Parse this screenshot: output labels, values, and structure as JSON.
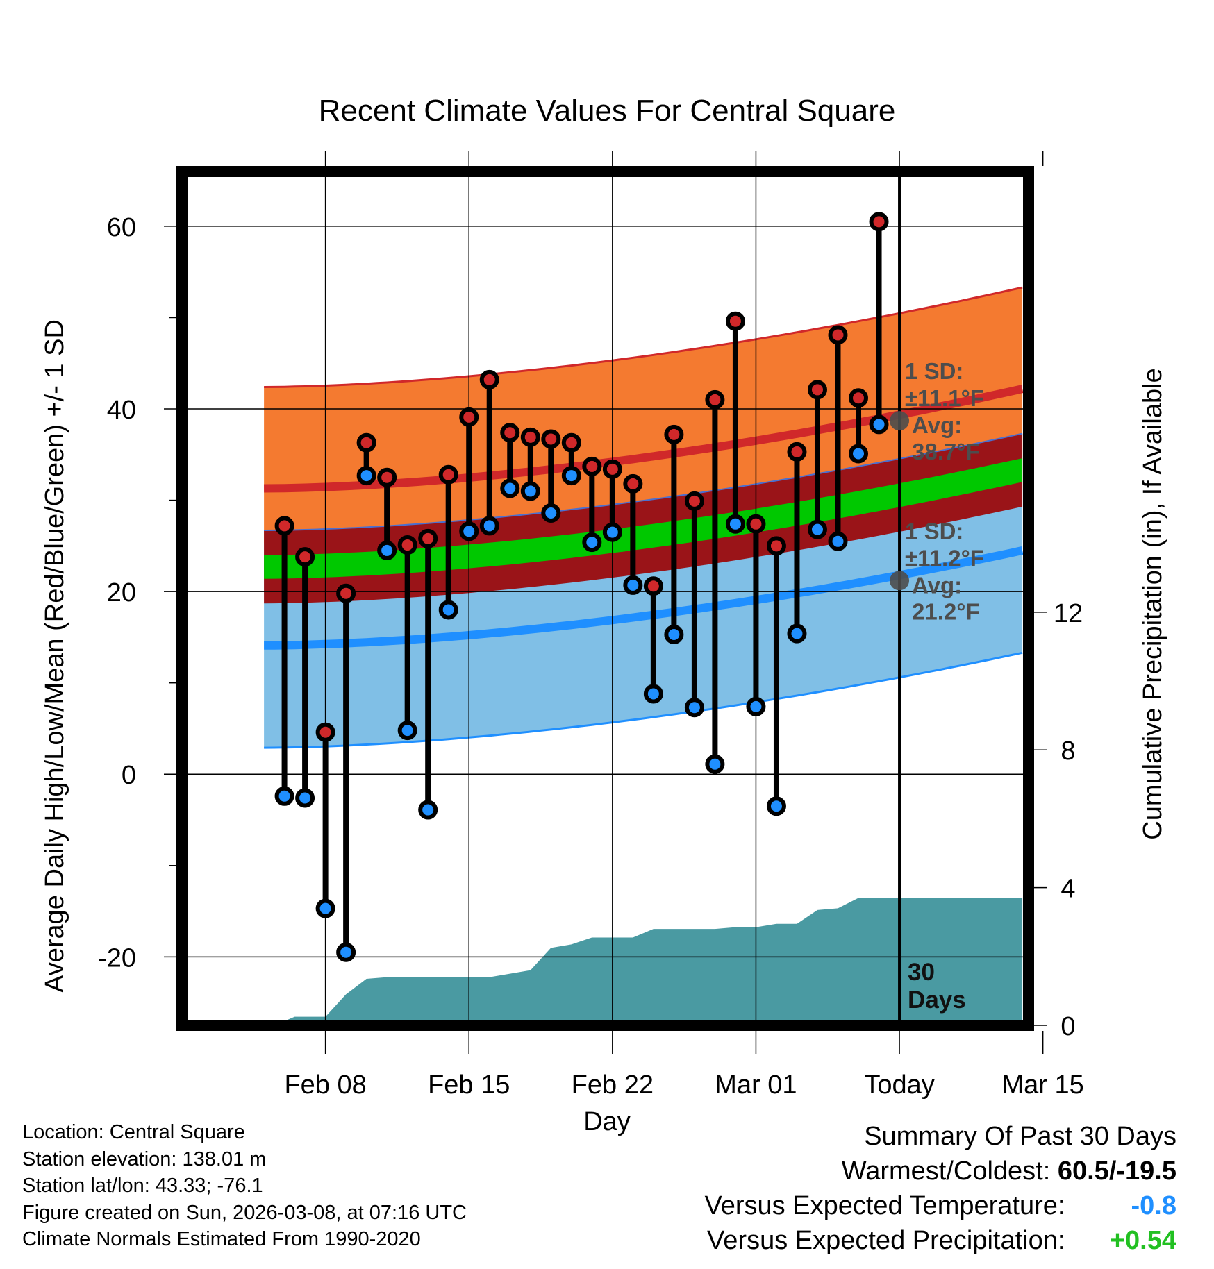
{
  "chart_data": {
    "type": "line",
    "title": "Recent Climate Values For Central Square",
    "xlabel": "Day",
    "ylabel": "Average Daily High/Low/Mean (Red/Blue/Green) +/- 1 SD",
    "y2label": "Cumulative Precipitation (in), If Available",
    "ylim": [
      -27.5,
      66
    ],
    "y2lim": [
      0,
      24.8
    ],
    "yticks": [
      -20,
      0,
      20,
      40,
      60
    ],
    "y2ticks": [
      0,
      4,
      8,
      12
    ],
    "x_day_range": [
      -35,
      6.3
    ],
    "x_ticks": [
      {
        "day": -28,
        "label": "Feb 08"
      },
      {
        "day": -21,
        "label": "Feb 15"
      },
      {
        "day": -14,
        "label": "Feb 22"
      },
      {
        "day": -7,
        "label": "Mar 01"
      },
      {
        "day": 0,
        "label": "Today"
      },
      {
        "day": 7,
        "label": "Mar 15"
      }
    ],
    "days": [
      -30,
      -29,
      -28,
      -27,
      -26,
      -25,
      -24,
      -23,
      -22,
      -21,
      -20,
      -19,
      -18,
      -17,
      -16,
      -15,
      -14,
      -13,
      -12,
      -11,
      -10,
      -9,
      -8,
      -7,
      -6,
      -5,
      -4,
      -3,
      -2,
      -1
    ],
    "highs": [
      27.2,
      23.8,
      4.6,
      19.8,
      36.3,
      32.5,
      25.1,
      25.8,
      32.8,
      39.1,
      43.2,
      37.4,
      36.9,
      36.7,
      36.3,
      33.7,
      33.4,
      31.8,
      20.6,
      37.2,
      29.9,
      41.0,
      49.6,
      27.4,
      25.0,
      35.3,
      42.1,
      48.1,
      41.2,
      60.5
    ],
    "lows": [
      -2.4,
      -2.6,
      -14.7,
      -19.5,
      32.7,
      24.5,
      4.8,
      -3.9,
      18.0,
      26.6,
      27.2,
      31.3,
      31.0,
      28.6,
      32.7,
      25.4,
      26.5,
      20.7,
      8.8,
      15.3,
      7.3,
      1.1,
      27.4,
      7.4,
      -3.5,
      15.4,
      26.8,
      25.5,
      35.1,
      38.3
    ],
    "normals": {
      "day_start": -31,
      "day_end": 6,
      "high_mean": [
        31.3,
        42.2
      ],
      "high_sd": 11.1,
      "low_mean": [
        14.1,
        24.5
      ],
      "low_sd": 11.2,
      "mean_avg": [
        22.7,
        33.3
      ],
      "mean_band_half": 1.3,
      "mean_outer_half": 4.0
    },
    "precip_cumulative": {
      "days": [
        -31,
        -30.5,
        -29.5,
        -28,
        -27,
        -26,
        -25,
        -24,
        -23,
        -22,
        -21,
        -20,
        -19,
        -18,
        -17,
        -16,
        -15,
        -14,
        -13,
        -12,
        -11,
        -10,
        -9,
        -8,
        -7,
        -6,
        -5,
        -4,
        -3,
        -2,
        -1,
        0,
        6
      ],
      "values": [
        0,
        0,
        0.25,
        0.25,
        0.9,
        1.35,
        1.4,
        1.4,
        1.4,
        1.4,
        1.4,
        1.4,
        1.5,
        1.6,
        2.25,
        2.35,
        2.55,
        2.55,
        2.55,
        2.8,
        2.8,
        2.8,
        2.8,
        2.85,
        2.85,
        2.95,
        2.95,
        3.35,
        3.4,
        3.7,
        3.7,
        3.7,
        3.7
      ]
    },
    "annotations": {
      "high": {
        "day": 0,
        "value": 38.7,
        "sd_label": "1 SD:",
        "sd_value": "±11.1°F",
        "avg_label": "Avg:",
        "avg_value": "38.7°F"
      },
      "low": {
        "day": 0,
        "value": 21.2,
        "sd_label": "1 SD:",
        "sd_value": "±11.2°F",
        "avg_label": "Avg:",
        "avg_value": "21.2°F"
      },
      "days_label_line1": "30",
      "days_label_line2": "Days"
    },
    "colors": {
      "high_band": "#f47a30",
      "high_line": "#d0282a",
      "low_band": "#80bfe6",
      "low_line": "#1f8fff",
      "mean_band": "#00c800",
      "mean_outer": "#9a1418",
      "precip": "#4a9aa2",
      "annotation": "#4d4d4d"
    }
  },
  "info": {
    "location": "Location: Central Square",
    "elevation": "Station elevation: 138.01 m",
    "latlon": "Station lat/lon: 43.33; -76.1",
    "created": "Figure created on Sun, 2026-03-08, at 07:16 UTC",
    "normals": "Climate Normals Estimated From 1990-2020"
  },
  "summary": {
    "title": "Summary Of Past 30 Days",
    "extremes_label": "Warmest/Coldest:",
    "extremes_value": "60.5/-19.5",
    "temp_label": "Versus Expected Temperature:",
    "temp_value": "-0.8",
    "precip_label": "Versus Expected Precipitation:",
    "precip_value": "+0.54"
  }
}
